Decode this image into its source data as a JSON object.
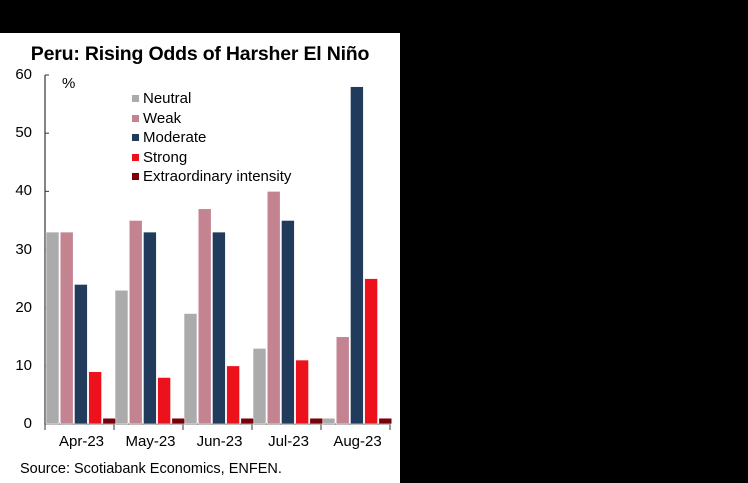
{
  "title": "Peru: Rising Odds of Harsher El Niño",
  "source": "Source: Scotiabank Economics, ENFEN.",
  "unit_label": "%",
  "colors": {
    "Neutral": "#ababab",
    "Weak": "#c48390",
    "Moderate": "#213b5c",
    "Strong": "#ec111a",
    "Extraordinary intensity": "#7a0009",
    "background": "#000000",
    "panel": "#ffffff"
  },
  "chart_data": {
    "type": "bar",
    "title": "Peru: Rising Odds of Harsher El Niño",
    "xlabel": "",
    "ylabel": "%",
    "ylim": [
      0,
      60
    ],
    "yticks": [
      0,
      10,
      20,
      30,
      40,
      50,
      60
    ],
    "grid": false,
    "legend_position": "upper-left inside plot",
    "categories": [
      "Apr-23",
      "May-23",
      "Jun-23",
      "Jul-23",
      "Aug-23"
    ],
    "series": [
      {
        "name": "Neutral",
        "values": [
          33,
          23,
          19,
          13,
          1
        ]
      },
      {
        "name": "Weak",
        "values": [
          33,
          35,
          37,
          40,
          15
        ]
      },
      {
        "name": "Moderate",
        "values": [
          24,
          33,
          33,
          35,
          58
        ]
      },
      {
        "name": "Strong",
        "values": [
          9,
          8,
          10,
          11,
          25
        ]
      },
      {
        "name": "Extraordinary intensity",
        "values": [
          1,
          1,
          1,
          1,
          1
        ]
      }
    ],
    "source": "Source: Scotiabank Economics, ENFEN."
  }
}
